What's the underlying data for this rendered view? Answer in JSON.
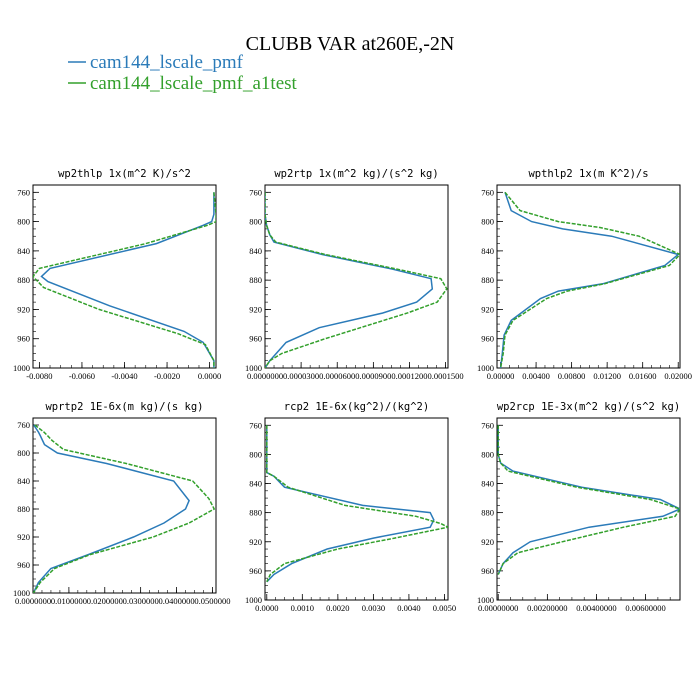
{
  "figure": {
    "title": "CLUBB VAR at260E,-2N",
    "legend": [
      {
        "label": "cam144_lscale_pmf",
        "color": "#2b7bb9",
        "dash": "solid"
      },
      {
        "label": "cam144_lscale_pmf_a1test",
        "color": "#33a02c",
        "dash": "dashed"
      }
    ]
  },
  "chart_data": [
    {
      "type": "line",
      "title": "wp2thlp   1x(m^2 K)/s^2",
      "xlim": [
        -0.0083,
        0.0003
      ],
      "ylim": [
        1000,
        750
      ],
      "xticks": [
        -0.008,
        -0.006,
        -0.004,
        -0.002,
        0.0
      ],
      "xtick_labels": [
        "-0.0080",
        "-0.0060",
        "-0.0040",
        "-0.0020",
        "0.0000"
      ],
      "yticks": [
        760,
        800,
        840,
        880,
        920,
        960,
        1000
      ],
      "series": [
        {
          "name": "cam144_lscale_pmf",
          "x": [
            0.0002,
            0.0002,
            0.0001,
            -0.0003,
            -0.0025,
            -0.0075,
            -0.0079,
            -0.0076,
            -0.0047,
            -0.0012,
            -0.0003,
            0.0002,
            0.0002
          ],
          "y": [
            760,
            790,
            800,
            805,
            830,
            864,
            875,
            882,
            915,
            950,
            965,
            990,
            1000
          ]
        },
        {
          "name": "cam144_lscale_pmf_a1test",
          "x": [
            0.0002,
            0.0003,
            0.0003,
            -0.0001,
            -0.003,
            -0.008,
            -0.0083,
            -0.0078,
            -0.0052,
            -0.0015,
            -0.0002,
            0.0002,
            0.0002
          ],
          "y": [
            760,
            790,
            800,
            805,
            830,
            864,
            875,
            890,
            920,
            953,
            968,
            990,
            1000
          ]
        }
      ]
    },
    {
      "type": "line",
      "title": "wp2rtp   1x(m^2 kg)/(s^2 kg)",
      "xlim": [
        0.0,
        0.000152
      ],
      "ylim": [
        1000,
        750
      ],
      "xticks": [
        0.0,
        3e-05,
        6e-05,
        9e-05,
        0.00012,
        0.00015
      ],
      "xtick_labels": [
        "0.0000000",
        "0.0000300",
        "0.0000600",
        "0.0000900",
        "0.0001200",
        "0.0001500"
      ],
      "yticks": [
        760,
        800,
        840,
        880,
        920,
        960,
        1000
      ],
      "series": [
        {
          "name": "cam144_lscale_pmf",
          "x": [
            0.0,
            0.0,
            1.3e-06,
            4e-06,
            7.5e-06,
            4.75e-05,
            0.000106,
            0.000138,
            0.000139,
            0.000126,
            9.75e-05,
            4.5e-05,
            1.75e-05,
            4e-06,
            0.0
          ],
          "y": [
            760,
            790,
            805,
            818,
            828,
            845,
            865,
            878,
            892,
            910,
            925,
            945,
            965,
            990,
            1000
          ]
        },
        {
          "name": "cam144_lscale_pmf_a1test",
          "x": [
            0.0,
            0.0,
            1.3e-06,
            4e-06,
            9e-06,
            5e-05,
            0.00011,
            0.000146,
            0.000151,
            0.000143,
            0.000118,
            5e-05,
            1.4e-05,
            4e-06,
            0.0
          ],
          "y": [
            760,
            790,
            805,
            818,
            828,
            845,
            865,
            878,
            892,
            910,
            925,
            960,
            980,
            990,
            1000
          ]
        }
      ]
    },
    {
      "type": "line",
      "title": "wpthlp2   1x(m K^2)/s",
      "xlim": [
        -0.0004,
        0.0202
      ],
      "ylim": [
        1000,
        750
      ],
      "xticks": [
        0.0,
        0.004,
        0.008,
        0.012,
        0.016,
        0.02
      ],
      "xtick_labels": [
        "0.00000",
        "0.00400",
        "0.00800",
        "0.01200",
        "0.01600",
        "0.02000"
      ],
      "yticks": [
        760,
        800,
        840,
        880,
        920,
        960,
        1000
      ],
      "series": [
        {
          "name": "cam144_lscale_pmf",
          "x": [
            0.0005,
            0.0012,
            0.0035,
            0.007,
            0.0125,
            0.02,
            0.0185,
            0.0115,
            0.0065,
            0.0045,
            0.0012,
            0.0004,
            0.0002,
            0.0
          ],
          "y": [
            760,
            785,
            800,
            810,
            820,
            845,
            860,
            885,
            895,
            905,
            935,
            955,
            980,
            1000
          ]
        },
        {
          "name": "cam144_lscale_pmf_a1test",
          "x": [
            0.0005,
            0.0022,
            0.0065,
            0.0112,
            0.0156,
            0.0202,
            0.019,
            0.0117,
            0.0075,
            0.0052,
            0.0014,
            0.0005,
            0.0003,
            0.0
          ],
          "y": [
            760,
            785,
            800,
            808,
            820,
            845,
            860,
            885,
            895,
            905,
            935,
            955,
            980,
            1000
          ]
        }
      ]
    },
    {
      "type": "line",
      "title": "wprtp2   1E-6x(m kg)/(s kg)",
      "xlim": [
        0.0,
        0.051
      ],
      "ylim": [
        1000,
        750
      ],
      "xticks": [
        0.0,
        0.01,
        0.02,
        0.03,
        0.04,
        0.05
      ],
      "xtick_labels": [
        "0.0000000",
        "0.0100000",
        "0.0200000",
        "0.0300000",
        "0.0400000",
        "0.0500000"
      ],
      "yticks": [
        760,
        800,
        840,
        880,
        920,
        960,
        1000
      ],
      "series": [
        {
          "name": "cam144_lscale_pmf",
          "x": [
            0.0002,
            0.0015,
            0.002,
            0.0032,
            0.0068,
            0.0205,
            0.0392,
            0.0435,
            0.0425,
            0.0365,
            0.028,
            0.0155,
            0.005,
            0.0015,
            0.0001
          ],
          "y": [
            760,
            770,
            775,
            788,
            800,
            815,
            840,
            868,
            880,
            900,
            920,
            945,
            965,
            985,
            1000
          ]
        },
        {
          "name": "cam144_lscale_pmf_a1test",
          "x": [
            0.0005,
            0.003,
            0.004,
            0.0053,
            0.0085,
            0.026,
            0.0445,
            0.049,
            0.0505,
            0.0435,
            0.0335,
            0.016,
            0.006,
            0.002,
            0.0001
          ],
          "y": [
            760,
            770,
            775,
            782,
            795,
            815,
            840,
            865,
            880,
            900,
            920,
            945,
            965,
            985,
            1000
          ]
        }
      ]
    },
    {
      "type": "line",
      "title": "rcp2   1E-6x(kg^2)/(kg^2)",
      "xlim": [
        -5e-05,
        0.0051
      ],
      "ylim": [
        1000,
        750
      ],
      "xticks": [
        0.0,
        0.001,
        0.002,
        0.003,
        0.004,
        0.005
      ],
      "xtick_labels": [
        "0.0000",
        "0.0010",
        "0.0020",
        "0.0030",
        "0.0040",
        "0.0050"
      ],
      "yticks": [
        760,
        800,
        840,
        880,
        920,
        960,
        1000
      ],
      "series": [
        {
          "name": "cam144_lscale_pmf",
          "x": [
            0.0,
            0.0,
            0.0,
            0.0002,
            0.0005,
            0.0027,
            0.0046,
            0.0047,
            0.0046,
            0.003,
            0.0017,
            0.0007,
            0.0002,
            0.0
          ],
          "y": [
            760,
            800,
            825,
            830,
            845,
            870,
            880,
            890,
            900,
            915,
            930,
            950,
            965,
            975
          ]
        },
        {
          "name": "cam144_lscale_pmf_a1test",
          "x": [
            0.0,
            0.0,
            0.0,
            0.0002,
            0.0006,
            0.0022,
            0.0042,
            0.0049,
            0.0051,
            0.0036,
            0.002,
            0.0005,
            0.0001,
            0.0
          ],
          "y": [
            760,
            800,
            825,
            830,
            845,
            870,
            885,
            895,
            900,
            915,
            930,
            950,
            965,
            975
          ]
        }
      ]
    },
    {
      "type": "line",
      "title": "wp2rcp   1E-3x(m^2 kg)/(s^2 kg)",
      "xlim": [
        -5e-05,
        0.0074
      ],
      "ylim": [
        1000,
        750
      ],
      "xticks": [
        0.0,
        0.002,
        0.004,
        0.006
      ],
      "xtick_labels": [
        "0.00000000",
        "0.00200000",
        "0.00400000",
        "0.00600000"
      ],
      "yticks": [
        760,
        800,
        840,
        880,
        920,
        960,
        1000
      ],
      "series": [
        {
          "name": "cam144_lscale_pmf",
          "x": [
            0.0,
            0.0,
            0.0001,
            0.0006,
            0.0034,
            0.0066,
            0.0074,
            0.0067,
            0.0037,
            0.0013,
            0.0006,
            0.0002,
            0.0
          ],
          "y": [
            760,
            800,
            812,
            823,
            845,
            862,
            875,
            885,
            900,
            920,
            935,
            950,
            965
          ]
        },
        {
          "name": "cam144_lscale_pmf_a1test",
          "x": [
            0.0,
            0.0,
            0.0001,
            0.0004,
            0.0032,
            0.0062,
            0.0074,
            0.0072,
            0.0051,
            0.0026,
            0.0008,
            0.0002,
            0.0
          ],
          "y": [
            760,
            800,
            812,
            823,
            845,
            862,
            875,
            885,
            900,
            920,
            935,
            950,
            965
          ]
        }
      ]
    }
  ]
}
